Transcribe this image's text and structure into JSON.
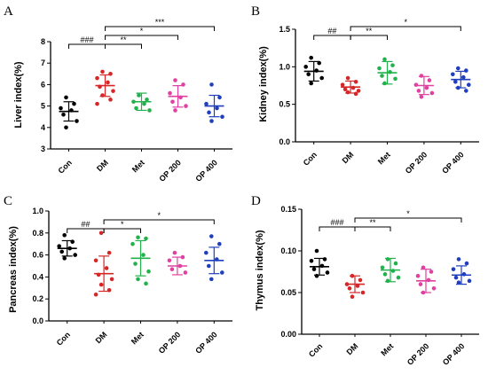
{
  "chart_data": [
    {
      "panel": "A",
      "type": "scatter",
      "ylabel": "Liver index(%)",
      "categories": [
        "Con",
        "DM",
        "Met",
        "OP 200",
        "OP 400"
      ],
      "colors": [
        "#000000",
        "#d62728",
        "#22b14c",
        "#e040a0",
        "#1f3fbf"
      ],
      "ylim": [
        3,
        8
      ],
      "yticks": [
        "3",
        "4",
        "5",
        "6",
        "7",
        "8"
      ],
      "series": [
        {
          "points": [
            5.4,
            5.1,
            4.9,
            4.8,
            4.6,
            4.3,
            4.0
          ],
          "mean": 4.75,
          "sd": 0.45
        },
        {
          "points": [
            6.6,
            6.5,
            6.3,
            6.1,
            5.9,
            5.7,
            5.5,
            5.3,
            5.1
          ],
          "mean": 5.95,
          "sd": 0.5
        },
        {
          "points": [
            5.5,
            5.3,
            5.2,
            5.1,
            4.9,
            4.8
          ],
          "mean": 5.2,
          "sd": 0.4
        },
        {
          "points": [
            6.2,
            6.0,
            5.6,
            5.4,
            5.2,
            5.0,
            4.8
          ],
          "mean": 5.45,
          "sd": 0.5
        },
        {
          "points": [
            6.0,
            5.4,
            5.1,
            4.9,
            4.7,
            4.5,
            4.3
          ],
          "mean": 5.0,
          "sd": 0.5
        }
      ],
      "annotations": [
        {
          "from": 0,
          "to": 1,
          "label": "###"
        },
        {
          "from": 1,
          "to": 2,
          "label": "**"
        },
        {
          "from": 1,
          "to": 3,
          "label": "*"
        },
        {
          "from": 1,
          "to": 4,
          "label": "***"
        }
      ]
    },
    {
      "panel": "B",
      "type": "scatter",
      "ylabel": "Kidney index(%)",
      "categories": [
        "Con",
        "DM",
        "Met",
        "OP 200",
        "OP 400"
      ],
      "colors": [
        "#000000",
        "#d62728",
        "#22b14c",
        "#e040a0",
        "#1f3fbf"
      ],
      "ylim": [
        0,
        1.5
      ],
      "yticks": [
        "0.0",
        "0.5",
        "1.0",
        "1.5"
      ],
      "series": [
        {
          "points": [
            1.12,
            1.05,
            1.0,
            0.95,
            0.9,
            0.85,
            0.78
          ],
          "mean": 0.94,
          "sd": 0.13
        },
        {
          "points": [
            0.85,
            0.8,
            0.76,
            0.72,
            0.7,
            0.68,
            0.66,
            0.64
          ],
          "mean": 0.73,
          "sd": 0.08
        },
        {
          "points": [
            1.1,
            1.02,
            0.98,
            0.93,
            0.88,
            0.84,
            0.78
          ],
          "mean": 0.92,
          "sd": 0.15
        },
        {
          "points": [
            0.88,
            0.82,
            0.76,
            0.72,
            0.68,
            0.65,
            0.6
          ],
          "mean": 0.75,
          "sd": 0.12
        },
        {
          "points": [
            0.98,
            0.95,
            0.9,
            0.86,
            0.8,
            0.76,
            0.72,
            0.68
          ],
          "mean": 0.83,
          "sd": 0.11
        }
      ],
      "annotations": [
        {
          "from": 0,
          "to": 1,
          "label": "##"
        },
        {
          "from": 1,
          "to": 2,
          "label": "**"
        },
        {
          "from": 1,
          "to": 4,
          "label": "*"
        }
      ]
    },
    {
      "panel": "C",
      "type": "scatter",
      "ylabel": "Pancreas index(%)",
      "categories": [
        "Con",
        "DM",
        "Met",
        "OP 200",
        "OP 400"
      ],
      "colors": [
        "#000000",
        "#d62728",
        "#22b14c",
        "#e040a0",
        "#1f3fbf"
      ],
      "ylim": [
        0,
        1.0
      ],
      "yticks": [
        "0.0",
        "0.2",
        "0.4",
        "0.6",
        "0.8",
        "1.0"
      ],
      "series": [
        {
          "points": [
            0.78,
            0.72,
            0.68,
            0.66,
            0.63,
            0.6,
            0.57
          ],
          "mean": 0.66,
          "sd": 0.07
        },
        {
          "points": [
            0.8,
            0.62,
            0.55,
            0.48,
            0.42,
            0.38,
            0.33,
            0.28,
            0.24
          ],
          "mean": 0.43,
          "sd": 0.16
        },
        {
          "points": [
            0.76,
            0.75,
            0.7,
            0.6,
            0.52,
            0.45,
            0.38,
            0.34
          ],
          "mean": 0.57,
          "sd": 0.16
        },
        {
          "points": [
            0.62,
            0.58,
            0.55,
            0.5,
            0.47,
            0.44
          ],
          "mean": 0.5,
          "sd": 0.08
        },
        {
          "points": [
            0.77,
            0.7,
            0.62,
            0.56,
            0.5,
            0.44,
            0.38
          ],
          "mean": 0.55,
          "sd": 0.12
        }
      ],
      "annotations": [
        {
          "from": 0,
          "to": 1,
          "label": "##"
        },
        {
          "from": 1,
          "to": 2,
          "label": "*"
        },
        {
          "from": 1,
          "to": 4,
          "label": "*"
        }
      ]
    },
    {
      "panel": "D",
      "type": "scatter",
      "ylabel": "Thymus index(%)",
      "categories": [
        "Con",
        "DM",
        "Met",
        "OP 200",
        "OP 400"
      ],
      "colors": [
        "#000000",
        "#d62728",
        "#22b14c",
        "#e040a0",
        "#1f3fbf"
      ],
      "ylim": [
        0,
        0.15
      ],
      "yticks": [
        "0.00",
        "0.05",
        "0.10",
        "0.15"
      ],
      "series": [
        {
          "points": [
            0.1,
            0.09,
            0.088,
            0.082,
            0.078,
            0.074,
            0.07
          ],
          "mean": 0.081,
          "sd": 0.01
        },
        {
          "points": [
            0.07,
            0.065,
            0.06,
            0.058,
            0.055,
            0.05,
            0.045
          ],
          "mean": 0.06,
          "sd": 0.01
        },
        {
          "points": [
            0.09,
            0.085,
            0.08,
            0.076,
            0.072,
            0.068,
            0.064
          ],
          "mean": 0.077,
          "sd": 0.014
        },
        {
          "points": [
            0.08,
            0.075,
            0.07,
            0.065,
            0.06,
            0.055,
            0.05
          ],
          "mean": 0.064,
          "sd": 0.014
        },
        {
          "points": [
            0.09,
            0.085,
            0.078,
            0.072,
            0.068,
            0.064,
            0.062
          ],
          "mean": 0.071,
          "sd": 0.011
        }
      ],
      "annotations": [
        {
          "from": 0,
          "to": 1,
          "label": "###"
        },
        {
          "from": 1,
          "to": 2,
          "label": "**"
        },
        {
          "from": 1,
          "to": 4,
          "label": "*"
        }
      ]
    }
  ]
}
